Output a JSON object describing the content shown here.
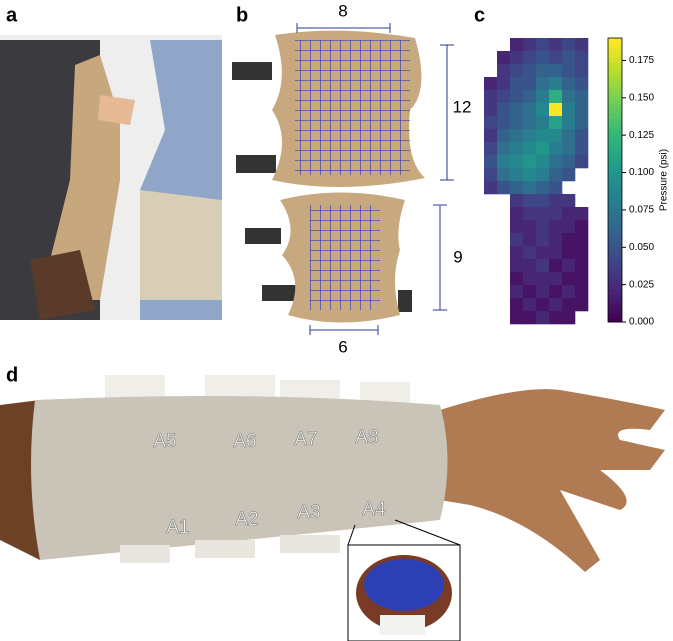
{
  "panel_a": {
    "label": "a"
  },
  "panel_b": {
    "label": "b",
    "top_width": 8,
    "top_height": 12,
    "bottom_height": 9,
    "bottom_width": 6
  },
  "panel_c": {
    "label": "c"
  },
  "panel_d": {
    "label": "d",
    "sensors": [
      "A1",
      "A2",
      "A3",
      "A4",
      "A5",
      "A6",
      "A7",
      "A8"
    ]
  },
  "chart_data": {
    "type": "heatmap",
    "colormap": "viridis",
    "colorbar_label": "Pressure (psi)",
    "zlim": [
      0,
      0.19
    ],
    "zticks": [
      {
        "value": 0,
        "label": "0.000"
      },
      {
        "value": 0.025,
        "label": "0.025"
      },
      {
        "value": 0.05,
        "label": "0.050"
      },
      {
        "value": 0.075,
        "label": "0.075"
      },
      {
        "value": 0.1,
        "label": "0.100"
      },
      {
        "value": 0.125,
        "label": "0.125"
      },
      {
        "value": 0.15,
        "label": "0.150"
      },
      {
        "value": 0.175,
        "label": "0.175"
      }
    ],
    "z": [
      [
        null,
        null,
        0.02,
        0.03,
        0.04,
        0.03,
        0.04,
        0.03
      ],
      [
        null,
        0.02,
        0.03,
        0.04,
        0.05,
        0.04,
        0.05,
        0.04
      ],
      [
        null,
        0.03,
        0.04,
        0.05,
        0.06,
        0.06,
        0.05,
        0.04
      ],
      [
        0.02,
        0.03,
        0.05,
        0.05,
        0.07,
        0.08,
        0.06,
        0.05
      ],
      [
        0.03,
        0.04,
        0.05,
        0.06,
        0.08,
        0.12,
        0.07,
        0.06
      ],
      [
        0.03,
        0.05,
        0.06,
        0.07,
        0.09,
        0.19,
        0.08,
        0.06
      ],
      [
        0.04,
        0.05,
        0.06,
        0.07,
        0.08,
        0.11,
        0.08,
        0.06
      ],
      [
        0.03,
        0.06,
        0.07,
        0.08,
        0.09,
        0.09,
        0.07,
        0.05
      ],
      [
        0.04,
        0.07,
        0.08,
        0.09,
        0.1,
        0.08,
        0.07,
        0.05
      ],
      [
        0.05,
        0.08,
        0.09,
        0.1,
        0.09,
        0.07,
        0.06,
        0.04
      ],
      [
        0.04,
        0.07,
        0.08,
        0.09,
        0.08,
        0.06,
        0.05,
        null
      ],
      [
        0.03,
        0.05,
        0.06,
        0.07,
        0.06,
        0.05,
        null,
        null
      ],
      [
        null,
        null,
        0.03,
        0.04,
        0.04,
        0.03,
        0.03,
        null
      ],
      [
        null,
        null,
        0.02,
        0.03,
        0.03,
        0.03,
        0.02,
        0.02
      ],
      [
        null,
        null,
        0.02,
        0.02,
        0.03,
        0.02,
        0.02,
        0.01
      ],
      [
        null,
        null,
        0.03,
        0.02,
        0.03,
        0.02,
        0.01,
        0.01
      ],
      [
        null,
        null,
        0.02,
        0.03,
        0.02,
        0.02,
        0.01,
        0.01
      ],
      [
        null,
        null,
        0.02,
        0.02,
        0.03,
        0.01,
        0.02,
        0.01
      ],
      [
        null,
        null,
        0.01,
        0.02,
        0.02,
        0.02,
        0.01,
        0.01
      ],
      [
        null,
        null,
        0.02,
        0.01,
        0.02,
        0.01,
        0.02,
        0.01
      ],
      [
        null,
        null,
        0.01,
        0.02,
        0.01,
        0.02,
        0.01,
        0.01
      ],
      [
        null,
        null,
        0.01,
        0.01,
        0.02,
        0.01,
        0.01,
        null
      ]
    ]
  }
}
